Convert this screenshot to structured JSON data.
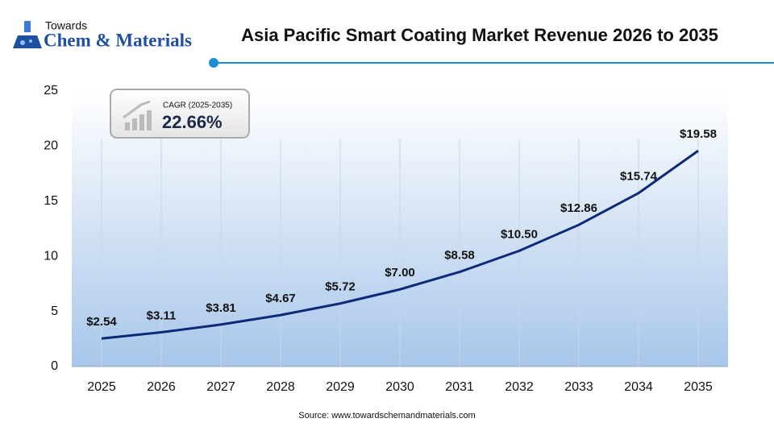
{
  "logo": {
    "top": "Towards",
    "bottom": "Chem & Materials"
  },
  "chart_data": {
    "type": "line",
    "title": "Asia Pacific Smart Coating Market Revenue 2026 to 2035",
    "categories": [
      "2025",
      "2026",
      "2027",
      "2028",
      "2029",
      "2030",
      "2031",
      "2032",
      "2033",
      "2034",
      "2035"
    ],
    "series": [
      {
        "name": "Revenue",
        "color": "#0c2a78",
        "values": [
          2.54,
          3.11,
          3.81,
          4.67,
          5.72,
          7.0,
          8.58,
          10.5,
          12.86,
          15.74,
          19.58
        ],
        "value_labels": [
          "$2.54",
          "$3.11",
          "$3.81",
          "$4.67",
          "$5.72",
          "$7.00",
          "$8.58",
          "$10.50",
          "$12.86",
          "$15.74",
          "$19.58"
        ]
      }
    ],
    "ylim": [
      0,
      25
    ],
    "yticks": [
      0,
      5,
      10,
      15,
      20,
      25
    ],
    "annotations": [
      "CAGR (2025-2035)",
      "22.66%"
    ],
    "source": "Source: www.towardschemandmaterials.com"
  }
}
